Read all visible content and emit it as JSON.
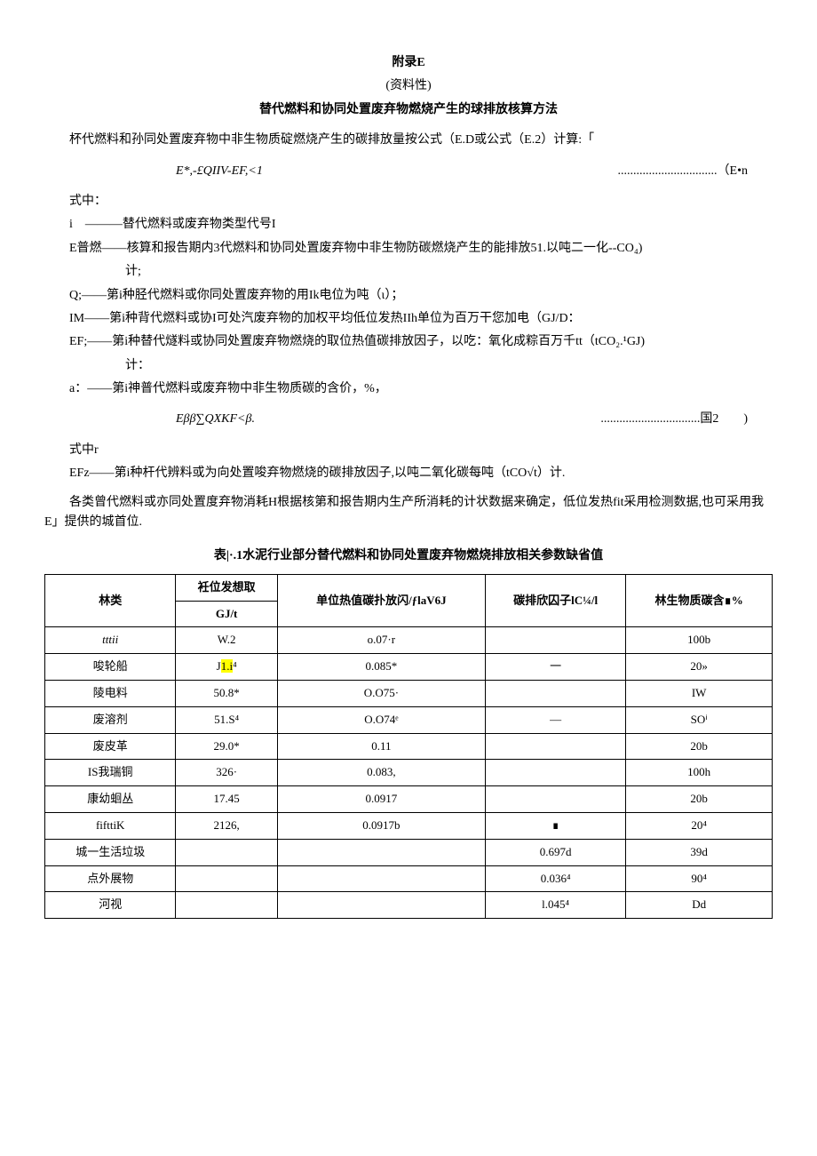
{
  "header": {
    "appendix": "附录E",
    "nature": "(资料性)",
    "title": "替代燃料和协同处置废弃物燃烧产生的球排放核算方法"
  },
  "intro": "杯代燃料和孙同处置废弃物中非生物质碇燃烧产生的碳排放量按公式（E.D或公式（E.2）计算:「",
  "formula1": {
    "expr": "E*,-£QIIV-EF,<1",
    "num": "................................（E•n"
  },
  "defs_label": "式中：",
  "defs1": [
    {
      "term": "i　———",
      "desc": "替代燃料或废弃物类型代号I"
    },
    {
      "term": "E普燃——",
      "desc": "核算和报告期内3代燃料和协同处置废弃物中非生物防碳燃烧产生的能排放51.以吨二一化--CO₄)",
      "cont": "计;"
    },
    {
      "term": "Q;——",
      "desc": "第i种胫代燃料或你同处置废弃物的用Ik电位为吨（ι）；"
    },
    {
      "term": "IM——",
      "desc": "第i种背代燃料或协I可处汽废弃物的加权平均低位发热IIh单位为百万干您加电（GJ/D："
    },
    {
      "term": "EF;——",
      "desc": "第i种替代燧料或协同处置废弃物燃烧的取位热值碳排放因子，以吃：氧化成粽百万千tt（tCO₂.¹GJ)",
      "cont": "计："
    },
    {
      "term": "a：——",
      "desc": "第i神普代燃料或废弃物中非生物质碳的含价，%，"
    }
  ],
  "formula2": {
    "expr": "Eββ∑QXKF<β.",
    "num": "................................国2　　)"
  },
  "defs2_label": "式中r",
  "defs2": [
    {
      "term": "EFz——",
      "desc": "第i种杆代辨料或为向处置唆弃物燃烧的碳排放因子,以吨二氧化碳每吨（tCO√t）计."
    }
  ],
  "tail_para": "各类曾代燃料或亦同处置度弃物消耗H根据核第和报告期内生产所消耗的计状数据来确定，低位发热fit采用检测数据,也可采用我E」提供的城首位.",
  "table": {
    "title": "表|·.1水泥行业部分替代燃料和协同处置废弃物燃烧排放相关参数缺省值",
    "headers": {
      "c1": "林类",
      "c2_top": "衽位发想取",
      "c2_bot": "GJ/t",
      "c3": "单位热值碳扑放闪/ƒlaV6J",
      "c4": "碳排欣囚子lC¼/l",
      "c5": "林生物质碳含∎%"
    },
    "rows": [
      {
        "c1": "tttii",
        "c1_italic": true,
        "c2": "W.2",
        "c3": "o.07·r",
        "c4": "",
        "c5": "100b"
      },
      {
        "c1": "唆轮船",
        "c2": "J1.i⁴",
        "c2_hl": true,
        "c3": "0.085*",
        "c4": "一",
        "c5": "20»"
      },
      {
        "c1": "陵电料",
        "c2": "50.8*",
        "c3": "O.O75·",
        "c4": "",
        "c5": "IW"
      },
      {
        "c1": "废溶剂",
        "c2": "51.S⁴",
        "c3": "O.O74ᵉ",
        "c4": "—",
        "c5": "SOⁱ"
      },
      {
        "c1": "废皮革",
        "c2": "29.0*",
        "c3": "0.11",
        "c4": "",
        "c5": "20b"
      },
      {
        "c1": "IS我瑞铜",
        "c2": "326·",
        "c3": "0.083,",
        "c4": "",
        "c5": "100h"
      },
      {
        "c1": "康幼蛔丛",
        "c2": "17.45",
        "c3": "0.0917",
        "c4": "",
        "c5": "20b"
      },
      {
        "c1": "fifttiK",
        "c2": "2126,",
        "c3": "0.0917b",
        "c4": "∎",
        "c5": "20⁴"
      },
      {
        "c1": "城一生活垃圾",
        "c2": "",
        "c3": "",
        "c4": "0.697d",
        "c5": "39d"
      },
      {
        "c1": "点外展物",
        "c2": "",
        "c3": "",
        "c4": "0.036⁴",
        "c5": "90⁴"
      },
      {
        "c1": "河视",
        "c2": "",
        "c3": "",
        "c4": "l.045⁴",
        "c5": "Dd"
      }
    ]
  }
}
